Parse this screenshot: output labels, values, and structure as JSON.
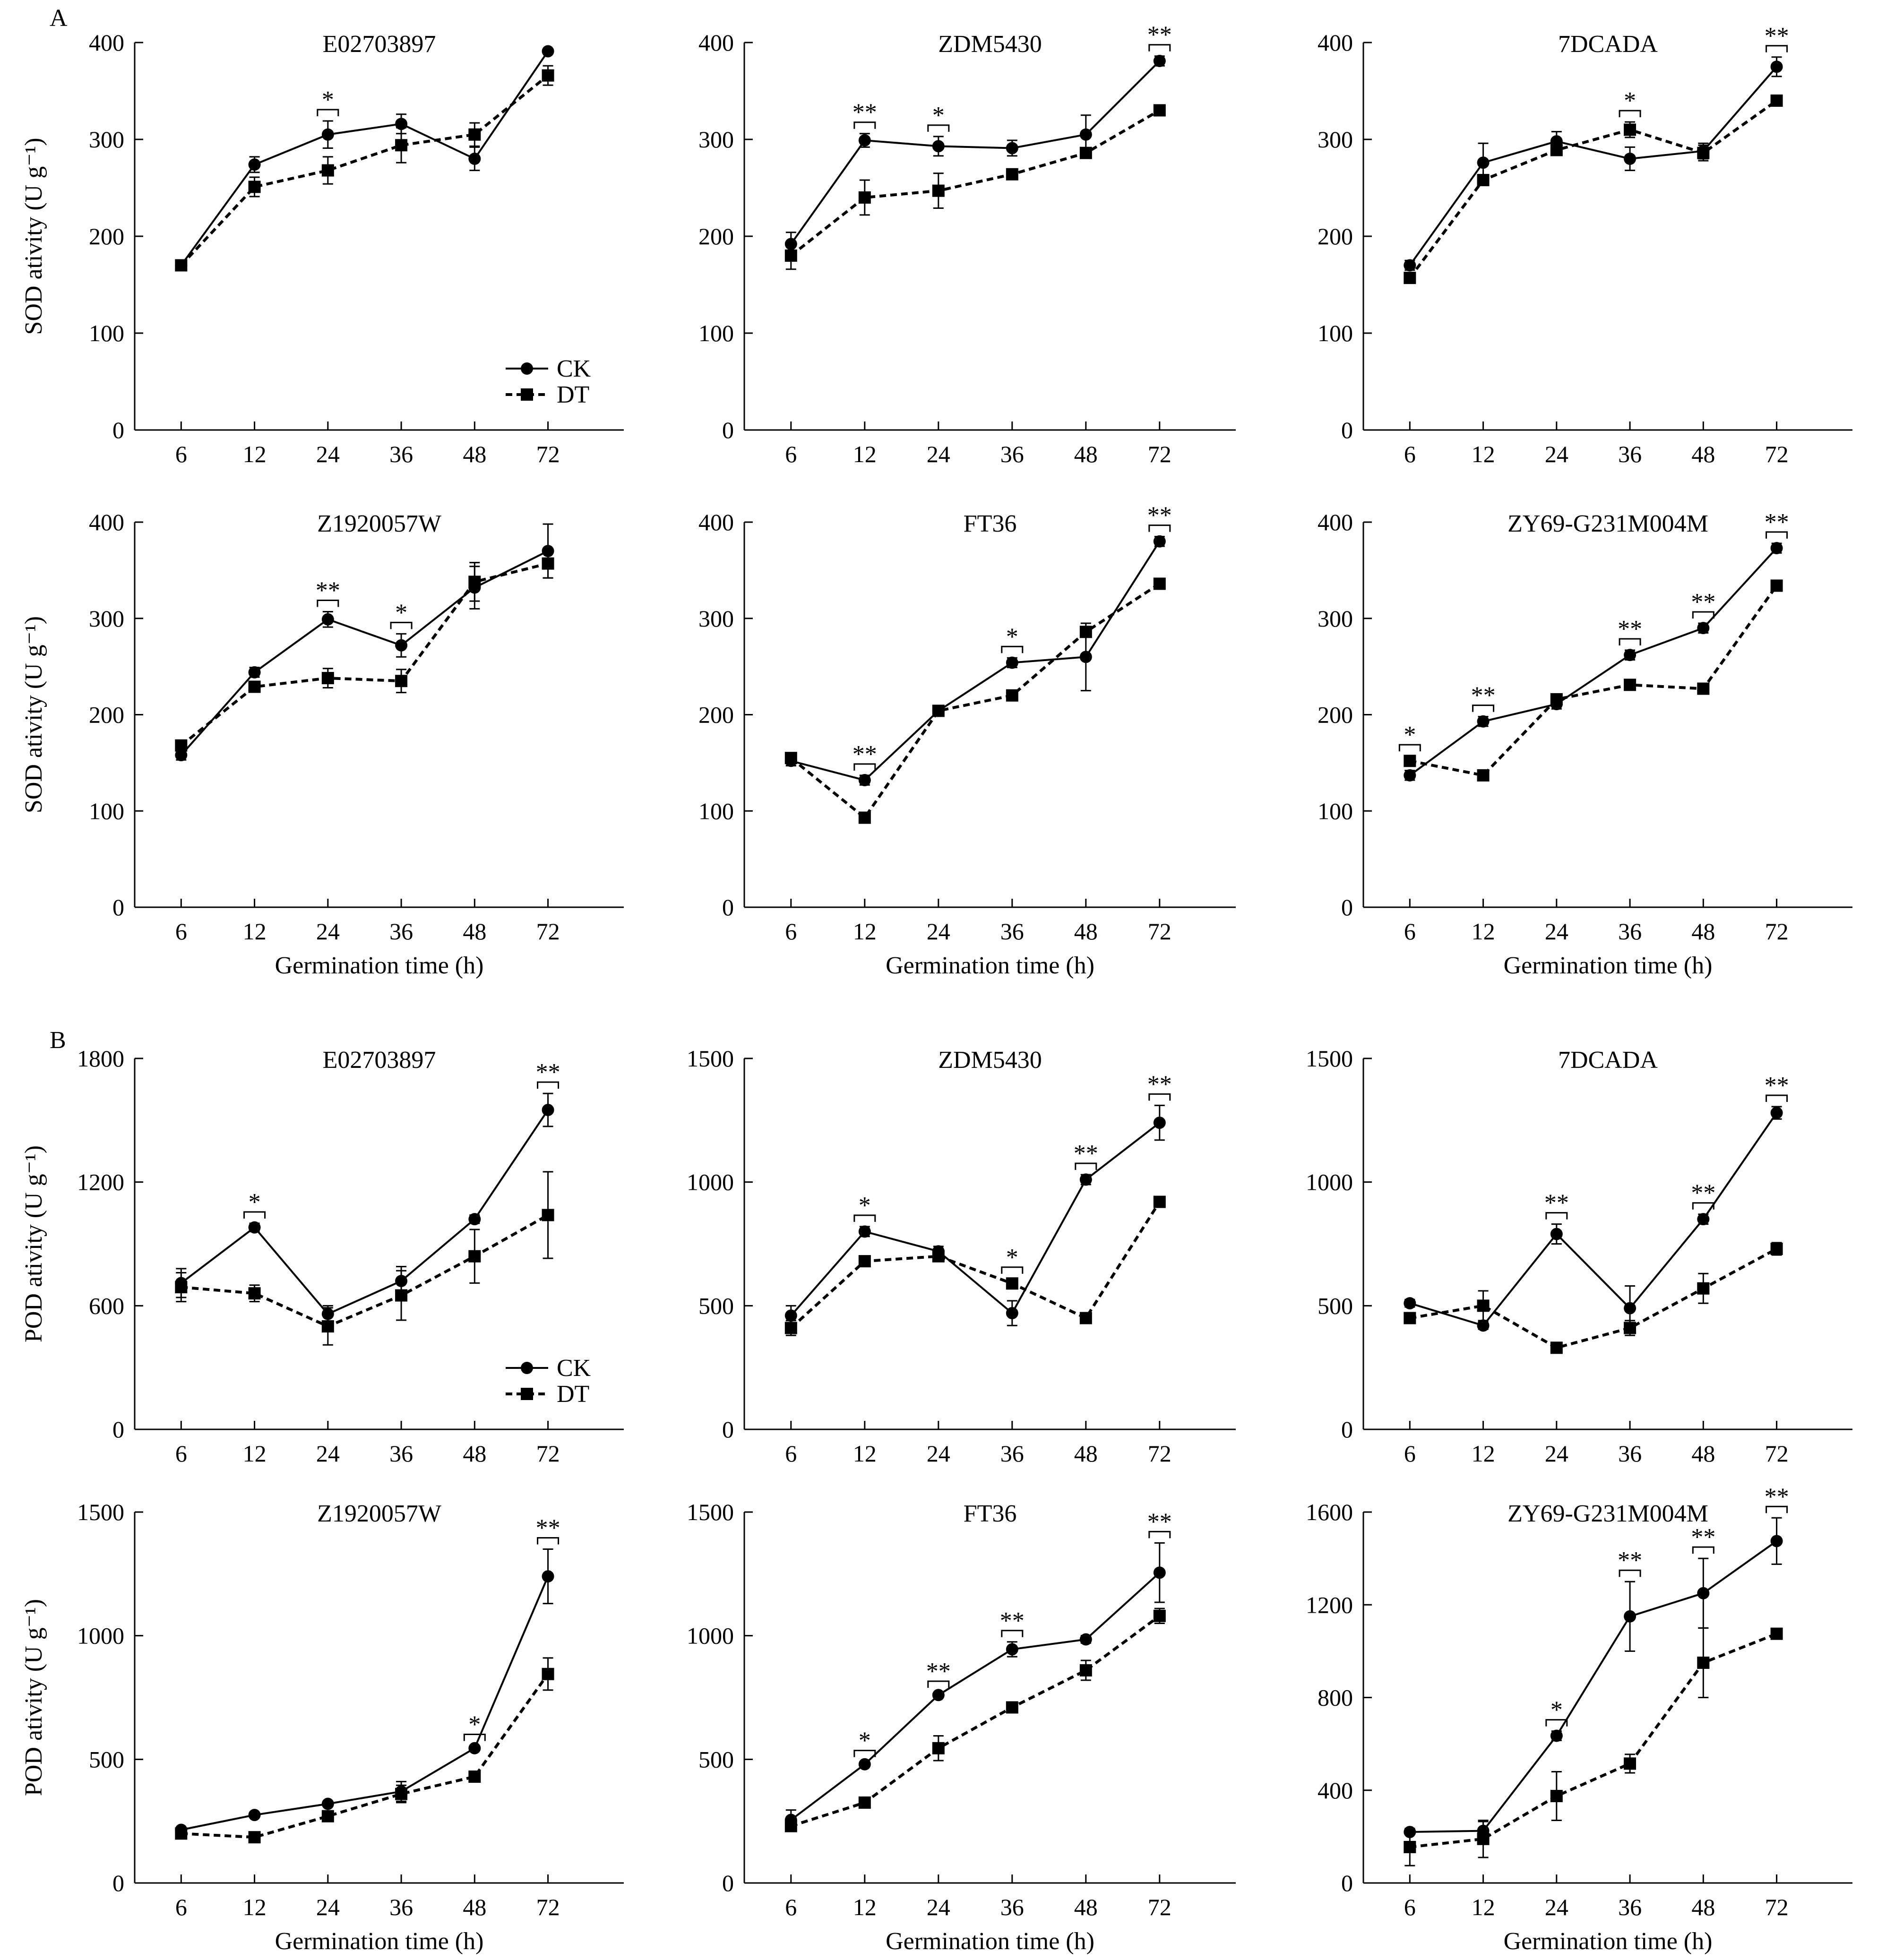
{
  "figure": {
    "panel_labels": [
      "A",
      "B"
    ],
    "x_categories": [
      "6",
      "12",
      "24",
      "36",
      "48",
      "72"
    ],
    "legend": {
      "ck": "CK",
      "dt": "DT"
    },
    "sod_ylabel": "SOD ativity (U g⁻¹)",
    "pod_ylabel": "POD ativity (U g⁻¹)",
    "xlabel": "Germination time (h)"
  },
  "chart_data": [
    {
      "type": "line",
      "panel": "A",
      "title": "E02703897",
      "ylabel": "SOD ativity (U g⁻¹)",
      "xlabel": "",
      "categories": [
        "6",
        "12",
        "24",
        "36",
        "48",
        "72"
      ],
      "ylim": [
        0,
        400
      ],
      "yticks": [
        0,
        100,
        200,
        300,
        400
      ],
      "series": [
        {
          "name": "CK",
          "values": [
            170,
            274,
            305,
            316,
            280,
            391
          ],
          "errors": [
            0,
            8,
            14,
            10,
            12,
            0
          ]
        },
        {
          "name": "DT",
          "values": [
            170,
            251,
            268,
            294,
            305,
            366
          ],
          "errors": [
            0,
            10,
            14,
            18,
            12,
            10
          ]
        }
      ],
      "significance": [
        "",
        "",
        "*",
        "",
        "",
        ""
      ],
      "legend": "bottom-right"
    },
    {
      "type": "line",
      "panel": "A",
      "title": "ZDM5430",
      "ylabel": "",
      "xlabel": "",
      "categories": [
        "6",
        "12",
        "24",
        "36",
        "48",
        "72"
      ],
      "ylim": [
        0,
        400
      ],
      "yticks": [
        0,
        100,
        200,
        300,
        400
      ],
      "series": [
        {
          "name": "CK",
          "values": [
            192,
            299,
            293,
            291,
            305,
            381
          ],
          "errors": [
            12,
            7,
            10,
            8,
            20,
            5
          ]
        },
        {
          "name": "DT",
          "values": [
            180,
            240,
            247,
            264,
            286,
            330
          ],
          "errors": [
            14,
            18,
            18,
            5,
            5,
            5
          ]
        }
      ],
      "significance": [
        "",
        "**",
        "*",
        "",
        "",
        "**"
      ]
    },
    {
      "type": "line",
      "panel": "A",
      "title": "7DCADA",
      "ylabel": "",
      "xlabel": "",
      "categories": [
        "6",
        "12",
        "24",
        "36",
        "48",
        "72"
      ],
      "ylim": [
        0,
        400
      ],
      "yticks": [
        0,
        100,
        200,
        300,
        400
      ],
      "series": [
        {
          "name": "CK",
          "values": [
            170,
            276,
            298,
            280,
            288,
            375
          ],
          "errors": [
            5,
            20,
            10,
            12,
            8,
            10
          ]
        },
        {
          "name": "DT",
          "values": [
            157,
            258,
            289,
            310,
            286,
            340
          ],
          "errors": [
            5,
            5,
            5,
            8,
            8,
            5
          ]
        }
      ],
      "significance": [
        "",
        "",
        "",
        "*",
        "",
        "**"
      ]
    },
    {
      "type": "line",
      "panel": "A",
      "title": "Z1920057W",
      "ylabel": "SOD ativity (U g⁻¹)",
      "xlabel": "Germination time (h)",
      "categories": [
        "6",
        "12",
        "24",
        "36",
        "48",
        "72"
      ],
      "ylim": [
        0,
        400
      ],
      "yticks": [
        0,
        100,
        200,
        300,
        400
      ],
      "series": [
        {
          "name": "CK",
          "values": [
            158,
            244,
            299,
            272,
            332,
            370
          ],
          "errors": [
            5,
            5,
            8,
            12,
            22,
            28
          ]
        },
        {
          "name": "DT",
          "values": [
            168,
            229,
            238,
            235,
            338,
            357
          ],
          "errors": [
            5,
            5,
            10,
            12,
            20,
            15
          ]
        }
      ],
      "significance": [
        "",
        "",
        "**",
        "*",
        "",
        ""
      ]
    },
    {
      "type": "line",
      "panel": "A",
      "title": "FT36",
      "ylabel": "",
      "xlabel": "Germination time (h)",
      "categories": [
        "6",
        "12",
        "24",
        "36",
        "48",
        "72"
      ],
      "ylim": [
        0,
        400
      ],
      "yticks": [
        0,
        100,
        200,
        300,
        400
      ],
      "series": [
        {
          "name": "CK",
          "values": [
            152,
            132,
            204,
            254,
            260,
            380
          ],
          "errors": [
            5,
            5,
            5,
            5,
            35,
            5
          ]
        },
        {
          "name": "DT",
          "values": [
            155,
            93,
            204,
            220,
            286,
            336
          ],
          "errors": [
            5,
            5,
            5,
            5,
            5,
            5
          ]
        }
      ],
      "significance": [
        "",
        "**",
        "",
        "*",
        "",
        "**"
      ]
    },
    {
      "type": "line",
      "panel": "A",
      "title": "ZY69-G231M004M",
      "ylabel": "",
      "xlabel": "Germination time (h)",
      "categories": [
        "6",
        "12",
        "24",
        "36",
        "48",
        "72"
      ],
      "ylim": [
        0,
        400
      ],
      "yticks": [
        0,
        100,
        200,
        300,
        400
      ],
      "series": [
        {
          "name": "CK",
          "values": [
            137,
            193,
            211,
            262,
            290,
            373
          ],
          "errors": [
            5,
            5,
            5,
            5,
            5,
            5
          ]
        },
        {
          "name": "DT",
          "values": [
            152,
            137,
            216,
            231,
            227,
            334
          ],
          "errors": [
            5,
            5,
            5,
            5,
            5,
            5
          ]
        }
      ],
      "significance": [
        "*",
        "**",
        "",
        "**",
        "**",
        "**"
      ]
    },
    {
      "type": "line",
      "panel": "B",
      "title": "E02703897",
      "ylabel": "POD ativity (U g⁻¹)",
      "xlabel": "",
      "categories": [
        "6",
        "12",
        "24",
        "36",
        "48",
        "72"
      ],
      "ylim": [
        0,
        1800
      ],
      "yticks": [
        0,
        600,
        1200,
        1800
      ],
      "series": [
        {
          "name": "CK",
          "values": [
            710,
            980,
            560,
            720,
            1020,
            1550
          ],
          "errors": [
            70,
            20,
            40,
            70,
            20,
            80
          ]
        },
        {
          "name": "DT",
          "values": [
            690,
            660,
            500,
            650,
            840,
            1040
          ],
          "errors": [
            70,
            40,
            90,
            120,
            130,
            210
          ]
        }
      ],
      "significance": [
        "",
        "*",
        "",
        "",
        "",
        "**"
      ],
      "legend": "bottom-right"
    },
    {
      "type": "line",
      "panel": "B",
      "title": "ZDM5430",
      "ylabel": "",
      "xlabel": "",
      "categories": [
        "6",
        "12",
        "24",
        "36",
        "48",
        "72"
      ],
      "ylim": [
        0,
        1500
      ],
      "yticks": [
        0,
        500,
        1000,
        1500
      ],
      "series": [
        {
          "name": "CK",
          "values": [
            460,
            800,
            720,
            470,
            1010,
            1240
          ],
          "errors": [
            40,
            20,
            20,
            50,
            20,
            70
          ]
        },
        {
          "name": "DT",
          "values": [
            410,
            680,
            700,
            590,
            450,
            920
          ],
          "errors": [
            30,
            20,
            20,
            20,
            15,
            15
          ]
        }
      ],
      "significance": [
        "",
        "*",
        "",
        "*",
        "**",
        "**"
      ]
    },
    {
      "type": "line",
      "panel": "B",
      "title": "7DCADA",
      "ylabel": "",
      "xlabel": "",
      "categories": [
        "6",
        "12",
        "24",
        "36",
        "48",
        "72"
      ],
      "ylim": [
        0,
        1500
      ],
      "yticks": [
        0,
        500,
        1000,
        1500
      ],
      "series": [
        {
          "name": "CK",
          "values": [
            510,
            420,
            790,
            490,
            850,
            1280
          ],
          "errors": [
            15,
            15,
            40,
            90,
            20,
            25
          ]
        },
        {
          "name": "DT",
          "values": [
            450,
            500,
            330,
            410,
            570,
            730
          ],
          "errors": [
            15,
            60,
            15,
            30,
            60,
            25
          ]
        }
      ],
      "significance": [
        "",
        "",
        "**",
        "",
        "**",
        "**"
      ]
    },
    {
      "type": "line",
      "panel": "B",
      "title": "Z1920057W",
      "ylabel": "POD ativity (U g⁻¹)",
      "xlabel": "Germination time (h)",
      "categories": [
        "6",
        "12",
        "24",
        "36",
        "48",
        "72"
      ],
      "ylim": [
        0,
        1500
      ],
      "yticks": [
        0,
        500,
        1000,
        1500
      ],
      "series": [
        {
          "name": "CK",
          "values": [
            215,
            275,
            320,
            370,
            545,
            1240
          ],
          "errors": [
            10,
            10,
            10,
            40,
            10,
            110
          ]
        },
        {
          "name": "DT",
          "values": [
            200,
            185,
            270,
            360,
            430,
            845
          ],
          "errors": [
            10,
            10,
            15,
            35,
            10,
            65
          ]
        }
      ],
      "significance": [
        "",
        "",
        "",
        "",
        "*",
        "**"
      ]
    },
    {
      "type": "line",
      "panel": "B",
      "title": "FT36",
      "ylabel": "",
      "xlabel": "Germination time (h)",
      "categories": [
        "6",
        "12",
        "24",
        "36",
        "48",
        "72"
      ],
      "ylim": [
        0,
        1500
      ],
      "yticks": [
        0,
        500,
        1000,
        1500
      ],
      "series": [
        {
          "name": "CK",
          "values": [
            255,
            480,
            760,
            945,
            985,
            1255
          ],
          "errors": [
            40,
            10,
            10,
            30,
            15,
            120
          ]
        },
        {
          "name": "DT",
          "values": [
            230,
            325,
            545,
            710,
            860,
            1080
          ],
          "errors": [
            20,
            10,
            50,
            10,
            40,
            30
          ]
        }
      ],
      "significance": [
        "",
        "*",
        "**",
        "**",
        "",
        "**"
      ]
    },
    {
      "type": "line",
      "panel": "B",
      "title": "ZY69-G231M004M",
      "ylabel": "",
      "xlabel": "Germination time (h)",
      "categories": [
        "6",
        "12",
        "24",
        "36",
        "48",
        "72"
      ],
      "ylim": [
        0,
        1600
      ],
      "yticks": [
        0,
        400,
        800,
        1200,
        1600
      ],
      "series": [
        {
          "name": "CK",
          "values": [
            220,
            225,
            635,
            1150,
            1250,
            1475
          ],
          "errors": [
            10,
            40,
            20,
            150,
            150,
            100
          ]
        },
        {
          "name": "DT",
          "values": [
            155,
            190,
            375,
            515,
            950,
            1075
          ],
          "errors": [
            80,
            80,
            105,
            40,
            150,
            10
          ]
        }
      ],
      "significance": [
        "",
        "",
        "*",
        "**",
        "**",
        "**"
      ]
    }
  ]
}
